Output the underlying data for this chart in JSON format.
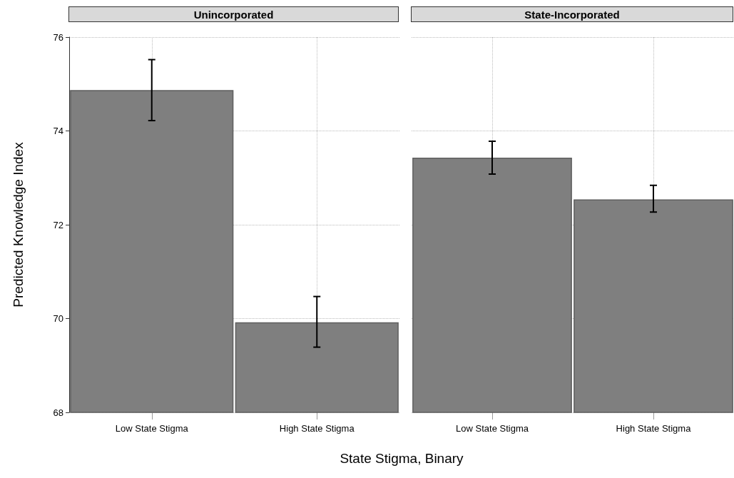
{
  "chart_data": [
    {
      "type": "bar",
      "title": "Unincorporated",
      "ylabel": "Predicted Knowledge Index",
      "xlabel": "State Stigma, Binary",
      "categories": [
        "Low State Stigma",
        "High State Stigma"
      ],
      "values": [
        74.87,
        69.92
      ],
      "errors": [
        [
          74.22,
          75.52
        ],
        [
          69.39,
          70.47
        ]
      ],
      "color": "#7f7f7f",
      "ylim": [
        68,
        76
      ],
      "yticks": [
        68,
        70,
        72,
        74,
        76
      ],
      "grid": true
    },
    {
      "type": "bar",
      "title": "State-Incorporated",
      "categories": [
        "Low State Stigma",
        "High State Stigma"
      ],
      "values": [
        73.43,
        72.54
      ],
      "errors": [
        [
          73.08,
          73.78
        ],
        [
          72.27,
          72.84
        ]
      ],
      "color": "#7f7f7f",
      "ylim": [
        68,
        76
      ],
      "yticks": [
        68,
        70,
        72,
        74,
        76
      ],
      "grid": true,
      "tick_labels": "x"
    }
  ]
}
